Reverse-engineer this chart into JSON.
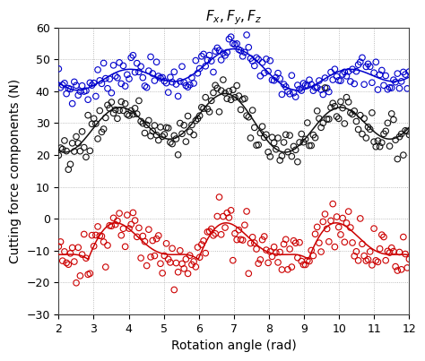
{
  "title": "$F_x, F_y, F_z$",
  "xlabel": "Rotation angle (rad)",
  "ylabel": "Cutting force components (N)",
  "xlim": [
    2,
    12
  ],
  "ylim": [
    -30,
    60
  ],
  "xticks": [
    2,
    3,
    4,
    5,
    6,
    7,
    8,
    9,
    10,
    11,
    12
  ],
  "yticks": [
    -30,
    -20,
    -10,
    0,
    10,
    20,
    30,
    40,
    50,
    60
  ],
  "blue_mean": 46.0,
  "blue_amp1": 4.0,
  "blue_amp2": 3.5,
  "blue_phase1": 0.0,
  "blue_phase2": 1.2,
  "black_mean": 30.0,
  "black_amp1": 7.0,
  "black_amp2": 3.0,
  "black_phase1": 0.5,
  "black_phase2": 1.8,
  "red_mean": -10.0,
  "red_amp1": 18.0,
  "red_amp2": 8.0,
  "red_phase1": 0.3,
  "red_phase2": 1.5,
  "freq": 1.0,
  "n_scatter": 180,
  "noise_blue": 2.5,
  "noise_black": 3.0,
  "noise_red": 4.0,
  "blue_color": "#0000CC",
  "black_color": "#111111",
  "red_color": "#CC0000",
  "scatter_size": 22,
  "scatter_lw": 0.8,
  "line_width": 1.1,
  "grid_color": "#aaaaaa",
  "bg_color": "#ffffff",
  "title_fontsize": 11,
  "label_fontsize": 10,
  "tick_fontsize": 9
}
